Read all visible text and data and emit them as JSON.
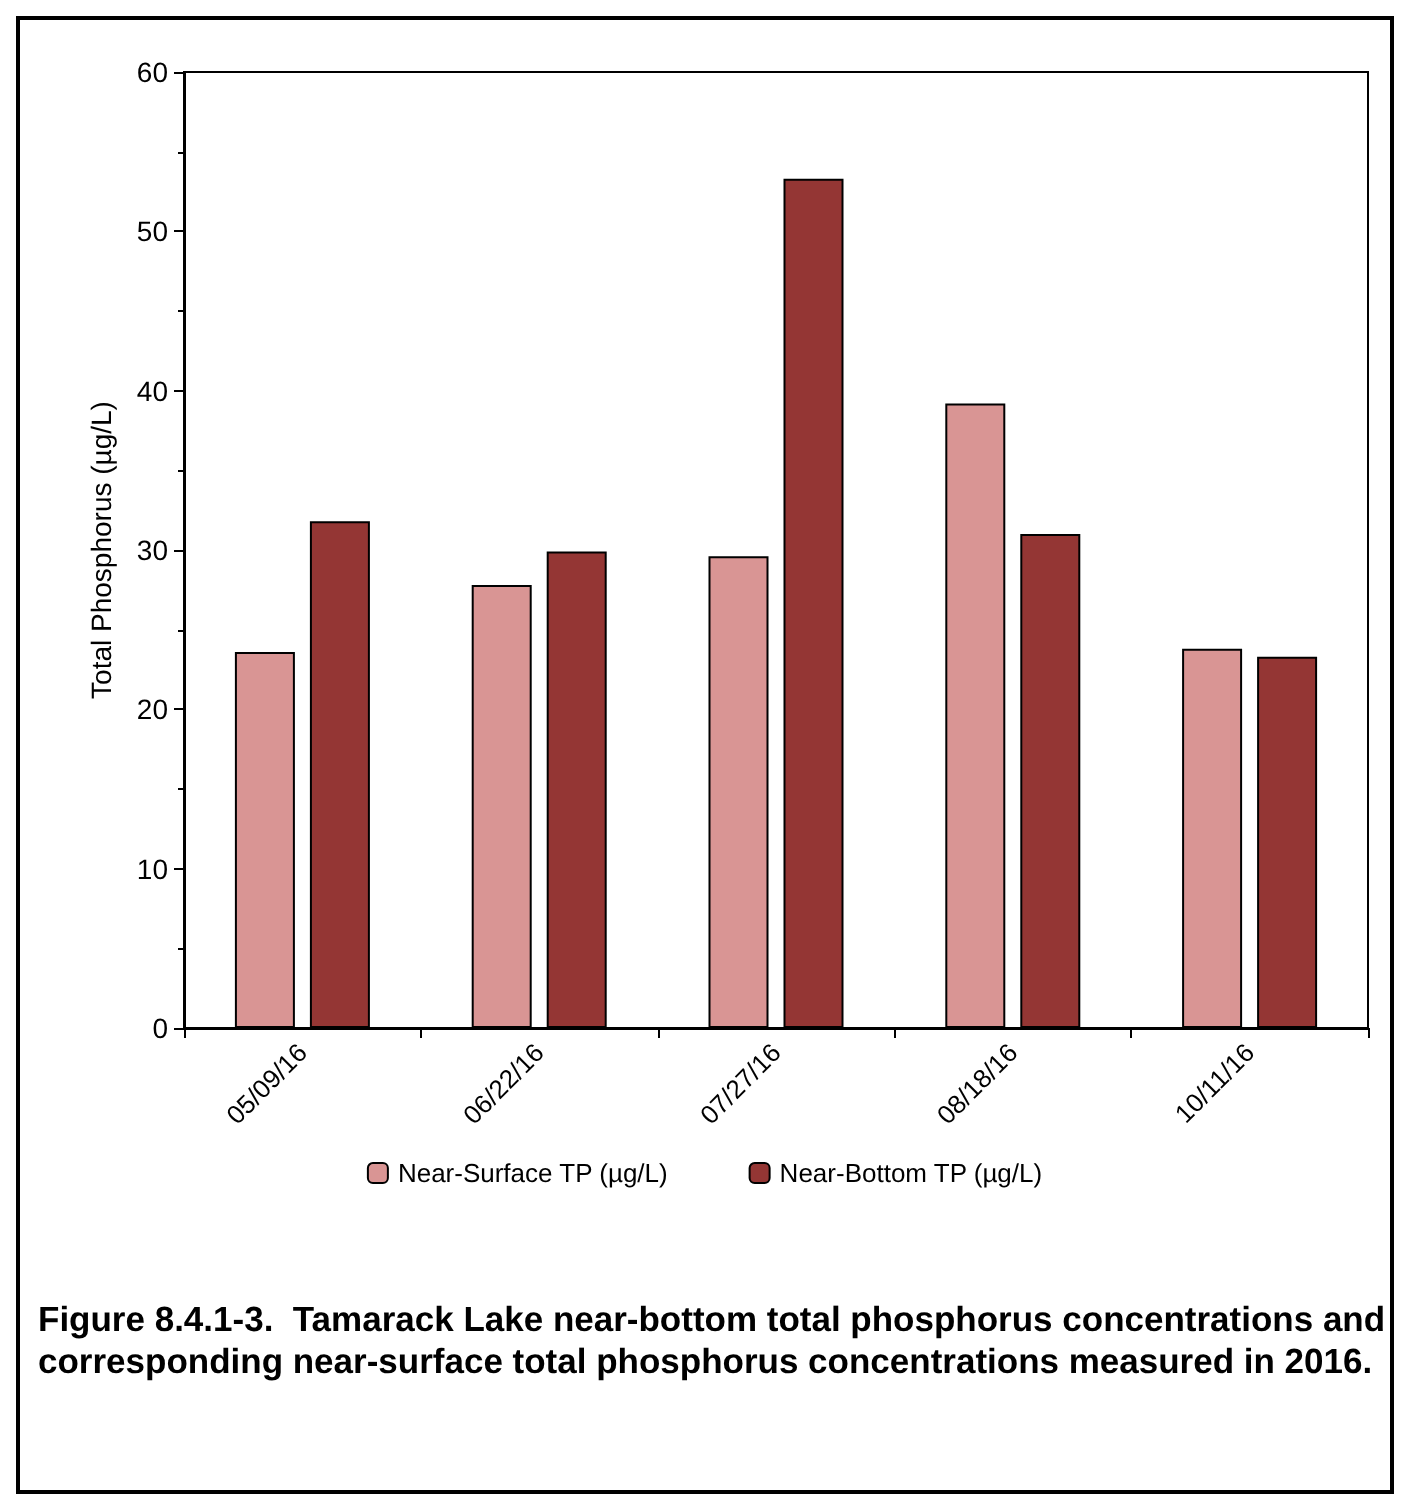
{
  "chart_data": {
    "type": "bar",
    "title": "Figure 8.4.1-3.  Tamarack Lake near-bottom total phosphorus concentrations and corresponding near-surface total phosphorus concentrations measured in 2016.",
    "ylabel": "Total Phosphorus (µg/L)",
    "categories": [
      "05/09/16",
      "06/22/16",
      "07/27/16",
      "08/18/16",
      "10/11/16"
    ],
    "series": [
      {
        "name": "Near-Surface TP (µg/L)",
        "color": "#d99594",
        "values": [
          23.6,
          27.8,
          29.6,
          39.2,
          23.8
        ]
      },
      {
        "name": "Near-Bottom TP (µg/L)",
        "color": "#943634",
        "values": [
          31.8,
          29.9,
          53.3,
          31.0,
          23.3
        ]
      }
    ],
    "ylim": [
      0,
      60
    ],
    "yticks": [
      0,
      10,
      20,
      30,
      40,
      50,
      60
    ],
    "grid": false,
    "legend": "bottom"
  }
}
